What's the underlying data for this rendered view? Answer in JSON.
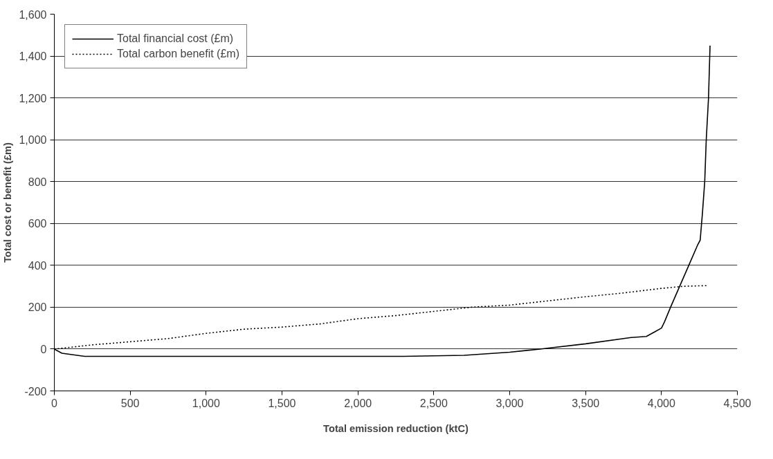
{
  "chart_data": {
    "type": "line",
    "xlabel": "Total emission reduction (ktC)",
    "ylabel": "Total cost or benefit (£m)",
    "xlim": [
      0,
      4500
    ],
    "xticks": [
      {
        "value": 0,
        "label": "0"
      },
      {
        "value": 500,
        "label": "500"
      },
      {
        "value": 1000,
        "label": "1,000"
      },
      {
        "value": 1500,
        "label": "1,500"
      },
      {
        "value": 2000,
        "label": "2,000"
      },
      {
        "value": 2500,
        "label": "2,500"
      },
      {
        "value": 3000,
        "label": "3,000"
      },
      {
        "value": 3500,
        "label": "3,500"
      },
      {
        "value": 4000,
        "label": "4,000"
      },
      {
        "value": 4500,
        "label": "4,500"
      }
    ],
    "ylim": [
      -200,
      1600
    ],
    "yticks": [
      -200,
      0,
      200,
      400,
      600,
      800,
      {
        "value": 1000,
        "label": "1,000"
      },
      {
        "value": 1200,
        "label": "1,200"
      },
      {
        "value": 1400,
        "label": "1,400"
      },
      {
        "value": 1600,
        "label": "1,600"
      }
    ],
    "grid": "y",
    "legend": "top left",
    "series": [
      {
        "name": "Total financial cost (£m)",
        "color": "#000000",
        "line_style": "solid",
        "x": [
          0,
          50,
          100,
          200,
          500,
          1000,
          1500,
          2000,
          2300,
          2700,
          3000,
          3200,
          3500,
          3800,
          3900,
          3950,
          4000,
          4020,
          4060,
          4120,
          4180,
          4240,
          4255,
          4270,
          4285,
          4295,
          4310,
          4320
        ],
        "values": [
          0,
          -20,
          -25,
          -35,
          -35,
          -35,
          -35,
          -35,
          -35,
          -30,
          -15,
          0,
          25,
          55,
          60,
          80,
          100,
          130,
          200,
          300,
          400,
          500,
          520,
          650,
          800,
          1000,
          1200,
          1450
        ]
      },
      {
        "name": "Total carbon benefit (£m)",
        "color": "#000000",
        "line_style": "dotted",
        "x": [
          0,
          250,
          500,
          750,
          1000,
          1250,
          1500,
          1750,
          2000,
          2250,
          2500,
          2750,
          3000,
          3250,
          3500,
          3750,
          4000,
          4150,
          4300
        ],
        "values": [
          0,
          20,
          35,
          50,
          75,
          95,
          105,
          120,
          145,
          160,
          180,
          200,
          210,
          230,
          250,
          268,
          290,
          300,
          303
        ]
      }
    ]
  }
}
